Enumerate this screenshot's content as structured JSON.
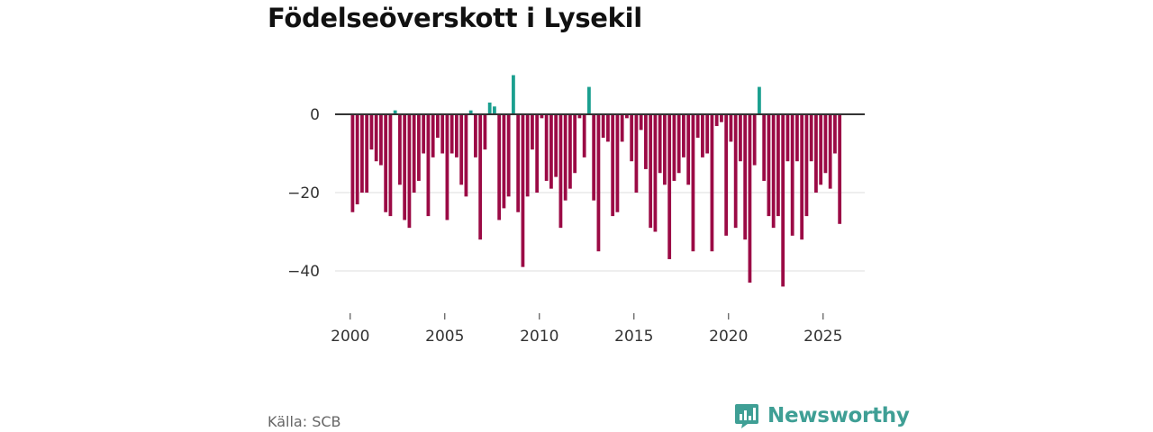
{
  "title": "Födelseöverskott i Lysekil",
  "source": "Källa: SCB",
  "brand": {
    "name": "Newsworthy",
    "icon": "bar-chart-speech-bubble-icon",
    "color": "#3f9f95"
  },
  "chart_data": {
    "type": "bar",
    "title": "Födelseöverskott i Lysekil",
    "xlabel": "",
    "ylabel": "",
    "x_ticks": [
      "2000",
      "2005",
      "2010",
      "2015",
      "2020",
      "2025"
    ],
    "y_ticks": [
      "0",
      "−20",
      "−40"
    ],
    "ylim": [
      -48,
      12
    ],
    "xlim": [
      1999.2,
      2027.2
    ],
    "grid": true,
    "legend": "none",
    "colors": {
      "positive": "#1a9f8f",
      "negative": "#9b0a45",
      "zero_line": "#333333",
      "grid": "#dddddd"
    },
    "series": [
      {
        "name": "",
        "x_start": 2000,
        "step": 0.25,
        "values": [
          -25,
          -23,
          -20,
          -20,
          -9,
          -12,
          -13,
          -25,
          -26,
          1,
          -18,
          -27,
          -29,
          -20,
          -17,
          -10,
          -26,
          -11,
          -6,
          -10,
          -27,
          -10,
          -11,
          -18,
          -21,
          1,
          -11,
          -32,
          -9,
          3,
          2,
          -27,
          -24,
          -21,
          10,
          -25,
          -39,
          -21,
          -9,
          -20,
          -1,
          -17,
          -19,
          -16,
          -29,
          -22,
          -19,
          -15,
          -1,
          -11,
          7,
          -22,
          -35,
          -6,
          -7,
          -26,
          -25,
          -7,
          -1,
          -12,
          -20,
          -4,
          -14,
          -29,
          -30,
          -15,
          -18,
          -37,
          -17,
          -15,
          -11,
          -18,
          -35,
          -6,
          -11,
          -10,
          -35,
          -3,
          -2,
          -31,
          -7,
          -29,
          -12,
          -32,
          -43,
          -13,
          7,
          -17,
          -26,
          -29,
          -26,
          -44,
          -12,
          -31,
          -12,
          -32,
          -26,
          -12,
          -20,
          -18,
          -15,
          -19,
          -10,
          -28
        ]
      }
    ]
  }
}
